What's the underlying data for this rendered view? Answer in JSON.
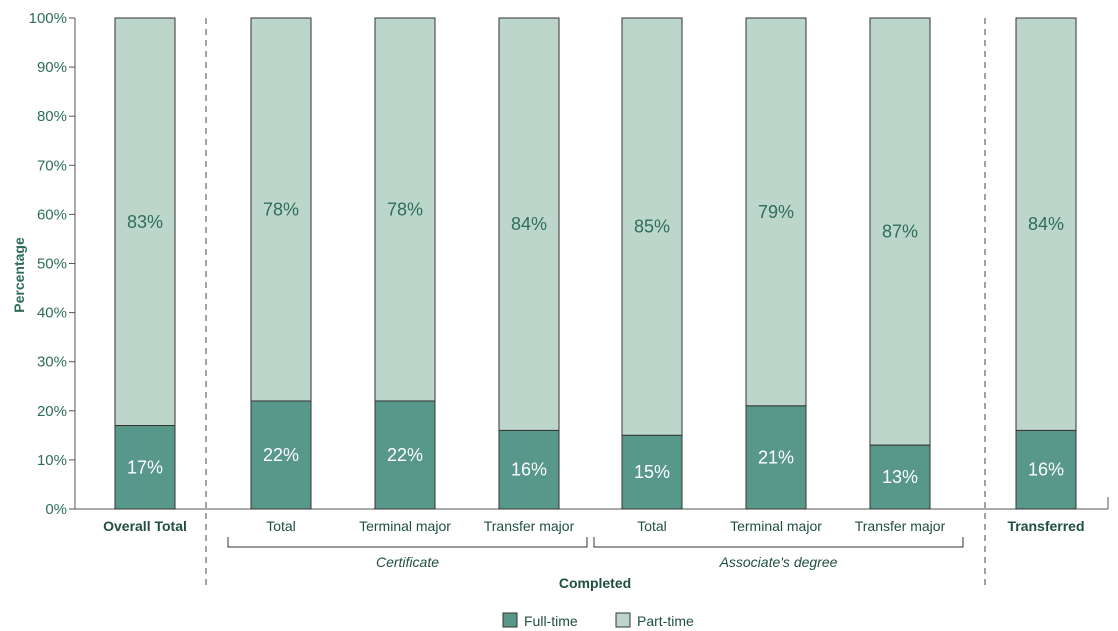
{
  "chart_data": {
    "type": "bar",
    "stacked": true,
    "ylabel": "Percentage",
    "ylim": [
      0,
      100
    ],
    "yticks": [
      "0%",
      "10%",
      "20%",
      "30%",
      "40%",
      "50%",
      "60%",
      "70%",
      "80%",
      "90%",
      "100%"
    ],
    "categories": [
      "Overall Total",
      "Total",
      "Terminal major",
      "Transfer major",
      "Total",
      "Terminal major",
      "Transfer major",
      "Transferred"
    ],
    "bold_categories": [
      "Overall Total",
      "Transferred"
    ],
    "series": [
      {
        "name": "Full-time",
        "color": "#58988a",
        "values": [
          17,
          22,
          22,
          16,
          15,
          21,
          13,
          16
        ],
        "labels": [
          "17%",
          "22%",
          "22%",
          "16%",
          "15%",
          "21%",
          "13%",
          "16%"
        ]
      },
      {
        "name": "Part-time",
        "color": "#bcd6cc",
        "values": [
          83,
          78,
          78,
          84,
          85,
          79,
          87,
          84
        ],
        "labels": [
          "83%",
          "78%",
          "78%",
          "84%",
          "85%",
          "79%",
          "87%",
          "84%"
        ]
      }
    ],
    "groups": [
      {
        "label": "Certificate",
        "category_indices": [
          1,
          2,
          3
        ]
      },
      {
        "label": "Associate's degree",
        "category_indices": [
          4,
          5,
          6
        ]
      }
    ],
    "supergroup": {
      "label": "Completed",
      "category_indices": [
        1,
        2,
        3,
        4,
        5,
        6
      ]
    },
    "legend": {
      "position": "bottom-center"
    },
    "grid": false
  }
}
